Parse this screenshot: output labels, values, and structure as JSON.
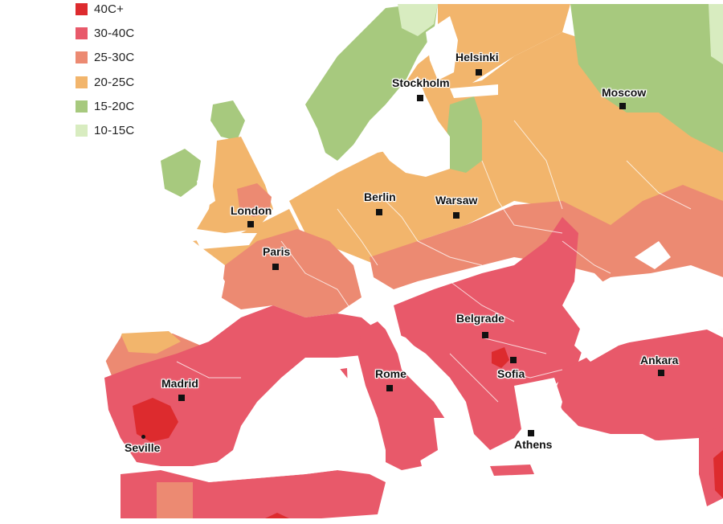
{
  "legend": {
    "items": [
      {
        "label": "40C+",
        "color": "#dd2b2e"
      },
      {
        "label": "30-40C",
        "color": "#e8596a"
      },
      {
        "label": "25-30C",
        "color": "#ec8a72"
      },
      {
        "label": "20-25C",
        "color": "#f2b56c"
      },
      {
        "label": "15-20C",
        "color": "#a7c97e"
      },
      {
        "label": "10-15C",
        "color": "#d8ecc0"
      }
    ]
  },
  "cities": {
    "helsinki": "Helsinki",
    "stockholm": "Stockholm",
    "moscow": "Moscow",
    "london": "London",
    "berlin": "Berlin",
    "warsaw": "Warsaw",
    "paris": "Paris",
    "belgrade": "Belgrade",
    "sofia": "Sofia",
    "ankara": "Ankara",
    "madrid": "Madrid",
    "rome": "Rome",
    "seville": "Seville",
    "athens": "Athens"
  }
}
